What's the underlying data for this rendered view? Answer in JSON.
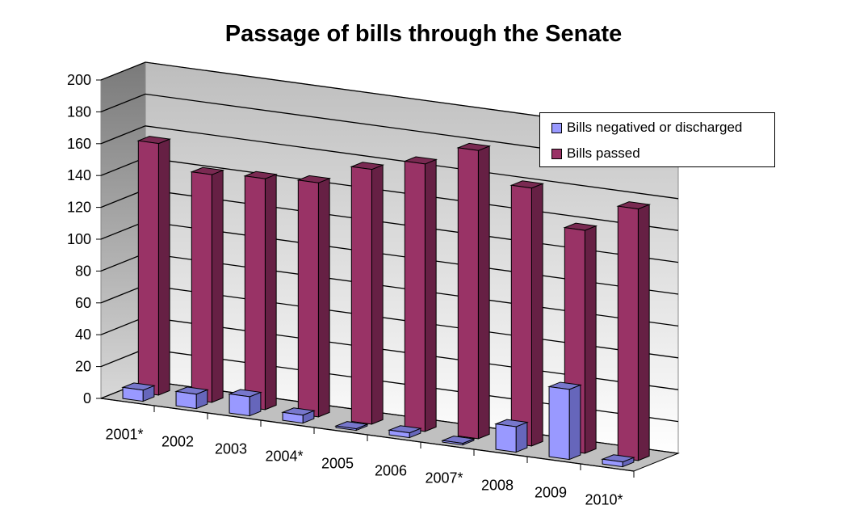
{
  "chart_data": {
    "type": "bar",
    "title": "Passage of bills through the Senate",
    "categories": [
      "2001*",
      "2002",
      "2003",
      "2004*",
      "2005",
      "2006",
      "2007*",
      "2008",
      "2009",
      "2010*"
    ],
    "series": [
      {
        "name": "Bills negatived or discharged",
        "color": "#9999ff",
        "values": [
          7,
          9,
          12,
          5,
          1,
          3,
          1,
          16,
          44,
          3
        ]
      },
      {
        "name": "Bills passed",
        "color": "#993366",
        "values": [
          158,
          143,
          145,
          147,
          160,
          168,
          181,
          162,
          140,
          158
        ]
      }
    ],
    "xlabel": "",
    "ylabel": "",
    "ylim": [
      0,
      200
    ],
    "yticks": [
      "0",
      "20",
      "40",
      "60",
      "80",
      "100",
      "120",
      "140",
      "160",
      "180",
      "200"
    ],
    "grid": true,
    "legend_position": "top-right",
    "style": "3d-column"
  }
}
